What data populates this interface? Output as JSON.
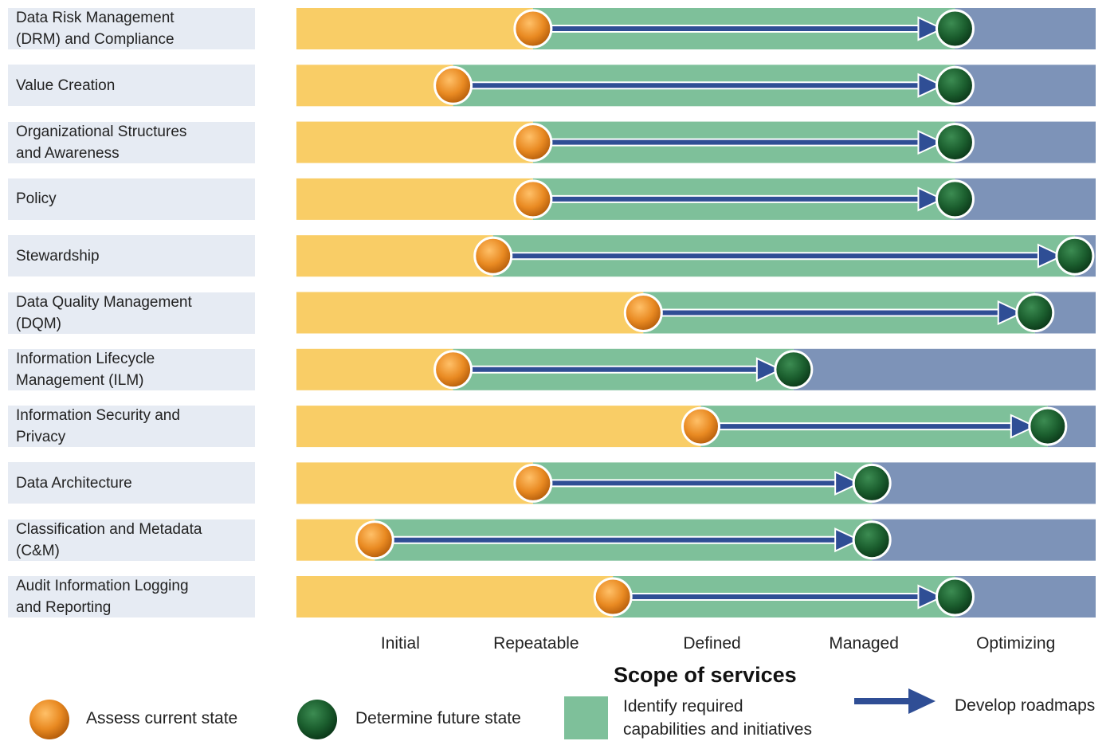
{
  "chart_data": {
    "type": "bar",
    "title": "",
    "stage_labels": [
      "Initial",
      "Repeatable",
      "Defined",
      "Managed",
      "Optimizing"
    ],
    "x_range": [
      0,
      5
    ],
    "footer_title": "Scope of services",
    "rows": [
      {
        "label_lines": [
          "Data Risk Management",
          "(DRM) and Compliance"
        ],
        "current": 1.48,
        "future": 4.12
      },
      {
        "label_lines": [
          "Value Creation"
        ],
        "current": 0.98,
        "future": 4.12
      },
      {
        "label_lines": [
          "Organizational Structures",
          "and Awareness"
        ],
        "current": 1.48,
        "future": 4.12
      },
      {
        "label_lines": [
          "Policy"
        ],
        "current": 1.48,
        "future": 4.12
      },
      {
        "label_lines": [
          "Stewardship"
        ],
        "current": 1.23,
        "future": 4.87
      },
      {
        "label_lines": [
          "Data Quality Management",
          "(DQM)"
        ],
        "current": 2.17,
        "future": 4.62
      },
      {
        "label_lines": [
          "Information Lifecycle",
          "Management (ILM)"
        ],
        "current": 0.98,
        "future": 3.11
      },
      {
        "label_lines": [
          "Information Security  and",
          "Privacy"
        ],
        "current": 2.53,
        "future": 4.7
      },
      {
        "label_lines": [
          "Data Architecture"
        ],
        "current": 1.48,
        "future": 3.6
      },
      {
        "label_lines": [
          "Classification and Metadata",
          "(C&M)"
        ],
        "current": 0.49,
        "future": 3.6
      },
      {
        "label_lines": [
          "Audit Information Logging",
          "and Reporting"
        ],
        "current": 1.98,
        "future": 4.12
      }
    ],
    "colors": {
      "current_zone": "#f9cd66",
      "scope_zone": "#7ec09a",
      "beyond_zone": "#7d93b8",
      "current_marker": "#e68a20",
      "future_marker": "#1b5e2e",
      "arrow": "#2f4e95"
    },
    "legend": [
      {
        "symbol": "orange-circle",
        "label": "Assess current state"
      },
      {
        "symbol": "green-circle",
        "label": "Determine future state"
      },
      {
        "symbol": "green-square",
        "label_lines": [
          "Identify required",
          "capabilities and initiatives"
        ]
      },
      {
        "symbol": "blue-arrow",
        "label": "Develop roadmaps"
      }
    ]
  }
}
